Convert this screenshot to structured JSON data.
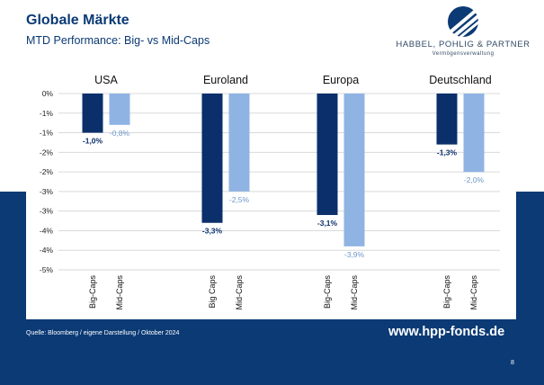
{
  "header": {
    "title": "Globale Märkte",
    "subtitle": "MTD Performance: Big- vs Mid-Caps"
  },
  "logo": {
    "name": "HABBEL, POHLIG & PARTNER",
    "tagline": "Vermögensverwaltung"
  },
  "footer": {
    "source": "Quelle: Bloomberg / eigene Darstellung / Oktober 2024",
    "url": "www.hpp-fonds.de",
    "page": "8"
  },
  "colors": {
    "brand": "#0b3a75",
    "big_caps": "#0b2f6b",
    "mid_caps": "#8fb4e3"
  },
  "chart_data": {
    "type": "bar",
    "title": "",
    "groups": [
      {
        "name": "USA",
        "bars": [
          {
            "label": "Big-Caps",
            "value": -1.0,
            "value_label": "-1,0%",
            "series": "big"
          },
          {
            "label": "Mid-Caps",
            "value": -0.8,
            "value_label": "-0,8%",
            "series": "mid"
          }
        ]
      },
      {
        "name": "Euroland",
        "bars": [
          {
            "label": "Big Caps",
            "value": -3.3,
            "value_label": "-3,3%",
            "series": "big"
          },
          {
            "label": "Mid-Caps",
            "value": -2.5,
            "value_label": "-2,5%",
            "series": "mid"
          }
        ]
      },
      {
        "name": "Europa",
        "bars": [
          {
            "label": "Big-Caps",
            "value": -3.1,
            "value_label": "-3,1%",
            "series": "big"
          },
          {
            "label": "Mid-Caps",
            "value": -3.9,
            "value_label": "-3,9%",
            "series": "mid"
          }
        ]
      },
      {
        "name": "Deutschland",
        "bars": [
          {
            "label": "Big-Caps",
            "value": -1.3,
            "value_label": "-1,3%",
            "series": "big"
          },
          {
            "label": "Mid-Caps",
            "value": -2.0,
            "value_label": "-2,0%",
            "series": "mid"
          }
        ]
      }
    ],
    "y_ticks": [
      {
        "value": 0.0,
        "label": "0%"
      },
      {
        "value": -0.5,
        "label": "-1%"
      },
      {
        "value": -1.0,
        "label": "-1%"
      },
      {
        "value": -1.5,
        "label": "-2%"
      },
      {
        "value": -2.0,
        "label": "-2%"
      },
      {
        "value": -2.5,
        "label": "-3%"
      },
      {
        "value": -3.0,
        "label": "-3%"
      },
      {
        "value": -3.5,
        "label": "-4%"
      },
      {
        "value": -4.0,
        "label": "-4%"
      },
      {
        "value": -4.5,
        "label": "-5%"
      }
    ],
    "ylim": [
      -4.5,
      0
    ],
    "xlabel": "",
    "ylabel": "",
    "grid": true,
    "legend": "none"
  }
}
